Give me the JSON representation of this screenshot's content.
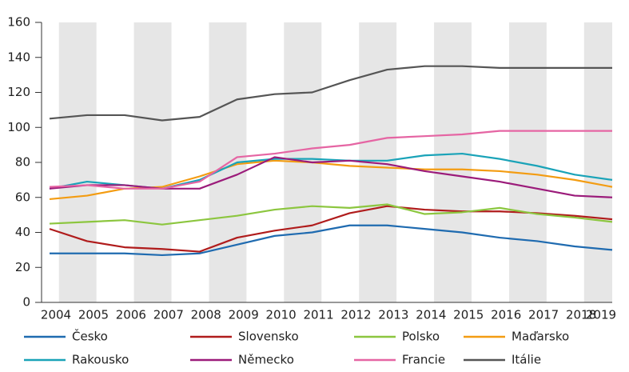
{
  "chart_data": {
    "type": "line",
    "x": [
      "2004",
      "2005",
      "2006",
      "2007",
      "2008",
      "2009",
      "2010",
      "2011",
      "2012",
      "2013",
      "2014",
      "2015",
      "2016",
      "2017",
      "2018",
      "2019"
    ],
    "ylim": [
      0,
      160
    ],
    "yticks": [
      0,
      20,
      40,
      60,
      80,
      100,
      120,
      140,
      160
    ],
    "series": [
      {
        "name": "Česko",
        "color": "#1f6bb0",
        "values": [
          28,
          28,
          28,
          27,
          28,
          33,
          38,
          40,
          44,
          44,
          42,
          40,
          37,
          35,
          32,
          30
        ]
      },
      {
        "name": "Slovensko",
        "color": "#b01c1c",
        "values": [
          42,
          35,
          31.5,
          30.5,
          29,
          37,
          41,
          44,
          51,
          55,
          53,
          52,
          52,
          51,
          49.5,
          47.5
        ]
      },
      {
        "name": "Polsko",
        "color": "#8cc63f",
        "values": [
          45,
          46,
          47,
          44.5,
          47,
          49.5,
          53,
          55,
          54,
          56,
          50.5,
          51.5,
          54,
          50.5,
          48.5,
          46
        ]
      },
      {
        "name": "Maďarsko",
        "color": "#f39c12",
        "values": [
          59,
          61,
          65,
          66,
          72,
          79,
          81,
          80,
          78,
          77,
          76,
          76,
          75,
          73,
          70,
          66
        ]
      },
      {
        "name": "Rakousko",
        "color": "#1aa3b8",
        "values": [
          65,
          69,
          67,
          65,
          70,
          80,
          82,
          82,
          81,
          81,
          84,
          85,
          82,
          78,
          73,
          70
        ]
      },
      {
        "name": "Německo",
        "color": "#9b1b7a",
        "values": [
          65,
          67,
          67,
          65,
          65,
          73,
          83,
          80,
          81,
          79,
          75,
          72,
          69,
          65,
          61,
          60
        ]
      },
      {
        "name": "Francie",
        "color": "#e565a3",
        "values": [
          66,
          67,
          65,
          65,
          69,
          83,
          85,
          88,
          90,
          94,
          95,
          96,
          98,
          98,
          98,
          98
        ]
      },
      {
        "name": "Itálie",
        "color": "#555555",
        "values": [
          105,
          107,
          107,
          104,
          106,
          116,
          119,
          120,
          127,
          133,
          135,
          135,
          134,
          134,
          134,
          134
        ]
      }
    ]
  }
}
